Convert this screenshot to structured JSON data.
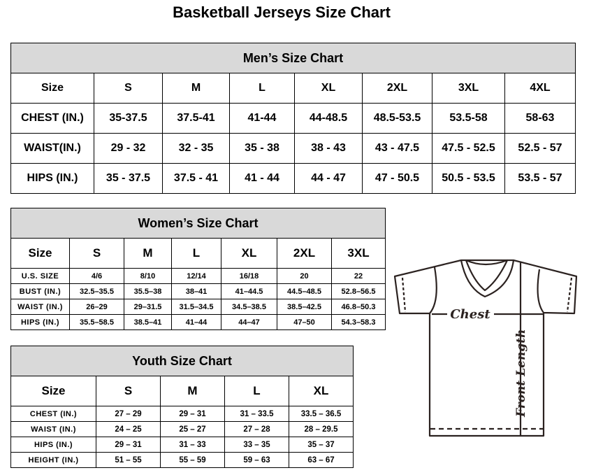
{
  "title": "Basketball Jerseys Size Chart",
  "mens": {
    "heading": "Men’s Size Chart",
    "rows": [
      [
        "Size",
        "S",
        "M",
        "L",
        "XL",
        "2XL",
        "3XL",
        "4XL"
      ],
      [
        "CHEST (IN.)",
        "35-37.5",
        "37.5-41",
        "41-44",
        "44-48.5",
        "48.5-53.5",
        "53.5-58",
        "58-63"
      ],
      [
        "WAIST(IN.)",
        "29 - 32",
        "32 - 35",
        "35 - 38",
        "38 - 43",
        "43 - 47.5",
        "47.5 - 52.5",
        "52.5 - 57"
      ],
      [
        "HIPS (IN.)",
        "35 - 37.5",
        "37.5 - 41",
        "41 - 44",
        "44 - 47",
        "47 - 50.5",
        "50.5 - 53.5",
        "53.5 - 57"
      ]
    ]
  },
  "womens": {
    "heading": "Women’s Size Chart",
    "rows": [
      [
        "Size",
        "S",
        "M",
        "L",
        "XL",
        "2XL",
        "3XL"
      ],
      [
        "U.S. SIZE",
        "4/6",
        "8/10",
        "12/14",
        "16/18",
        "20",
        "22"
      ],
      [
        "BUST (IN.)",
        "32.5–35.5",
        "35.5–38",
        "38–41",
        "41–44.5",
        "44.5–48.5",
        "52.8–56.5"
      ],
      [
        "WAIST (IN.)",
        "26–29",
        "29–31.5",
        "31.5–34.5",
        "34.5–38.5",
        "38.5–42.5",
        "46.8–50.3"
      ],
      [
        "HIPS (IN.)",
        "35.5–58.5",
        "38.5–41",
        "41–44",
        "44–47",
        "47–50",
        "54.3–58.3"
      ]
    ]
  },
  "youth": {
    "heading": "Youth Size Chart",
    "rows": [
      [
        "Size",
        "S",
        "M",
        "L",
        "XL"
      ],
      [
        "CHEST (IN.)",
        "27 – 29",
        "29 – 31",
        "31 – 33.5",
        "33.5 – 36.5"
      ],
      [
        "WAIST (IN.)",
        "24 – 25",
        "25 – 27",
        "27 – 28",
        "28 – 29.5"
      ],
      [
        "HIPS (IN.)",
        "29 – 31",
        "31 – 33",
        "33 – 35",
        "35 – 37"
      ],
      [
        "HEIGHT (IN.)",
        "51 – 55",
        "55 – 59",
        "59 – 63",
        "63 – 67"
      ]
    ]
  },
  "diagram": {
    "chest_label": "Chest",
    "length_label": "Front Length"
  },
  "colors": {
    "header_bg": "#d9d9d9",
    "line": "#2b2220"
  }
}
